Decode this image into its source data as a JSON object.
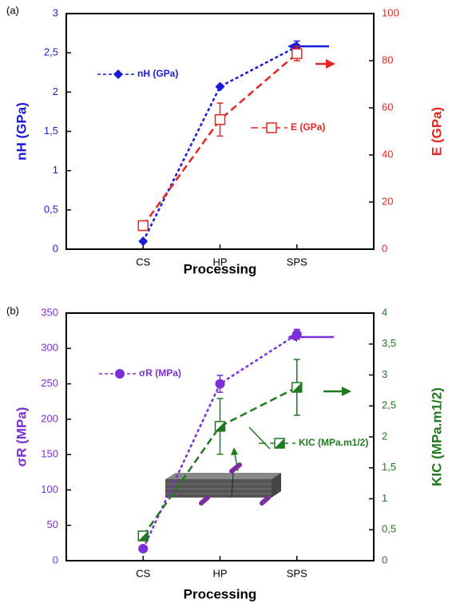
{
  "chart_data": [
    {
      "type": "line",
      "panel_label": "(a)",
      "xlabel": "Processing",
      "ylabel": "nH (GPa)",
      "y2label": "E (GPa)",
      "categories": [
        "CS",
        "HP",
        "SPS"
      ],
      "ylim": [
        0,
        3
      ],
      "yticks": [
        0,
        {
          "value": 0.5,
          "label": "0,5"
        },
        1,
        {
          "value": 1.5,
          "label": "1,5"
        },
        2,
        {
          "value": 2.5,
          "label": "2,5"
        },
        3
      ],
      "y2lim": [
        0,
        100
      ],
      "y2ticks": [
        0,
        20,
        40,
        60,
        80,
        100
      ],
      "series": [
        {
          "name": "nH (GPa)",
          "color": "#1a1adb",
          "marker": "diamond",
          "linestyle": "dotted",
          "values": [
            0.1,
            2.07,
            2.58
          ],
          "errors": [
            null,
            null,
            0.07
          ]
        },
        {
          "name": "E (GPa)",
          "color": "#e8261f",
          "marker": "open-square",
          "linestyle": "dashed",
          "axis": "y2",
          "values": [
            10,
            55,
            83
          ],
          "errors": [
            2,
            7,
            3
          ]
        }
      ]
    },
    {
      "type": "line",
      "panel_label": "(b)",
      "xlabel": "Processing",
      "ylabel": "σR (MPa)",
      "y2label": "KIC (MPa.m1/2)",
      "categories": [
        "CS",
        "HP",
        "SPS"
      ],
      "ylim": [
        0,
        350
      ],
      "yticks": [
        0,
        50,
        100,
        150,
        200,
        250,
        300,
        350
      ],
      "y2lim": [
        0,
        4
      ],
      "y2ticks": [
        0,
        {
          "value": 0.5,
          "label": "0,5"
        },
        1,
        {
          "value": 1.5,
          "label": "1,5"
        },
        2,
        {
          "value": 2.5,
          "label": "2,5"
        },
        3,
        {
          "value": 3.5,
          "label": "3,5"
        },
        4
      ],
      "series": [
        {
          "name": "σR (MPa)",
          "color": "#7b2fd6",
          "marker": "circle",
          "linestyle": "dotted",
          "values": [
            17,
            250,
            320
          ],
          "errors": [
            null,
            12,
            7
          ]
        },
        {
          "name": "KIC (MPa.m1/2)",
          "color": "#1f7a1f",
          "marker": "half-square",
          "linestyle": "dashed",
          "axis": "y2",
          "values": [
            0.4,
            2.17,
            2.8
          ],
          "errors": [
            null,
            0.45,
            0.45
          ]
        }
      ]
    }
  ]
}
